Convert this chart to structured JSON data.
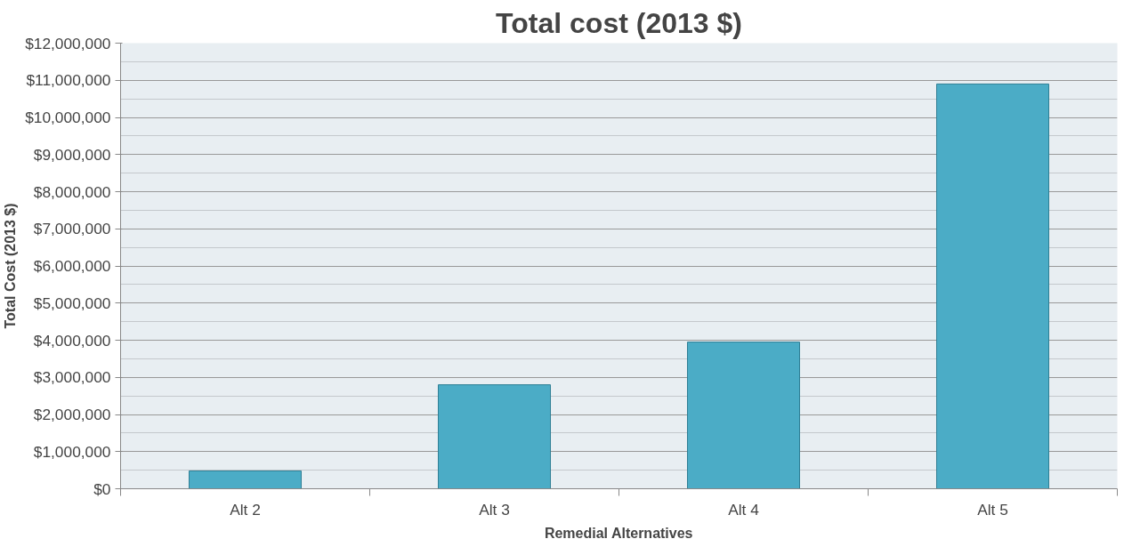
{
  "chart_data": {
    "type": "bar",
    "title": "Total cost (2013 $)",
    "xlabel": "Remedial Alternatives",
    "ylabel": "Total Cost (2013 $)",
    "categories": [
      "Alt 2",
      "Alt 3",
      "Alt 4",
      "Alt 5"
    ],
    "values": [
      480000,
      2800000,
      3950000,
      10900000
    ],
    "color": "#4bacc6",
    "ylim": [
      0,
      12000000
    ],
    "yticks": [
      {
        "value": 0,
        "label": "$0"
      },
      {
        "value": 1000000,
        "label": "$1,000,000"
      },
      {
        "value": 2000000,
        "label": "$2,000,000"
      },
      {
        "value": 3000000,
        "label": "$3,000,000"
      },
      {
        "value": 4000000,
        "label": "$4,000,000"
      },
      {
        "value": 5000000,
        "label": "$5,000,000"
      },
      {
        "value": 6000000,
        "label": "$6,000,000"
      },
      {
        "value": 7000000,
        "label": "$7,000,000"
      },
      {
        "value": 8000000,
        "label": "$8,000,000"
      },
      {
        "value": 9000000,
        "label": "$9,000,000"
      },
      {
        "value": 10000000,
        "label": "$10,000,000"
      },
      {
        "value": 11000000,
        "label": "$11,000,000"
      },
      {
        "value": 12000000,
        "label": "$12,000,000"
      }
    ],
    "grid": "y"
  }
}
